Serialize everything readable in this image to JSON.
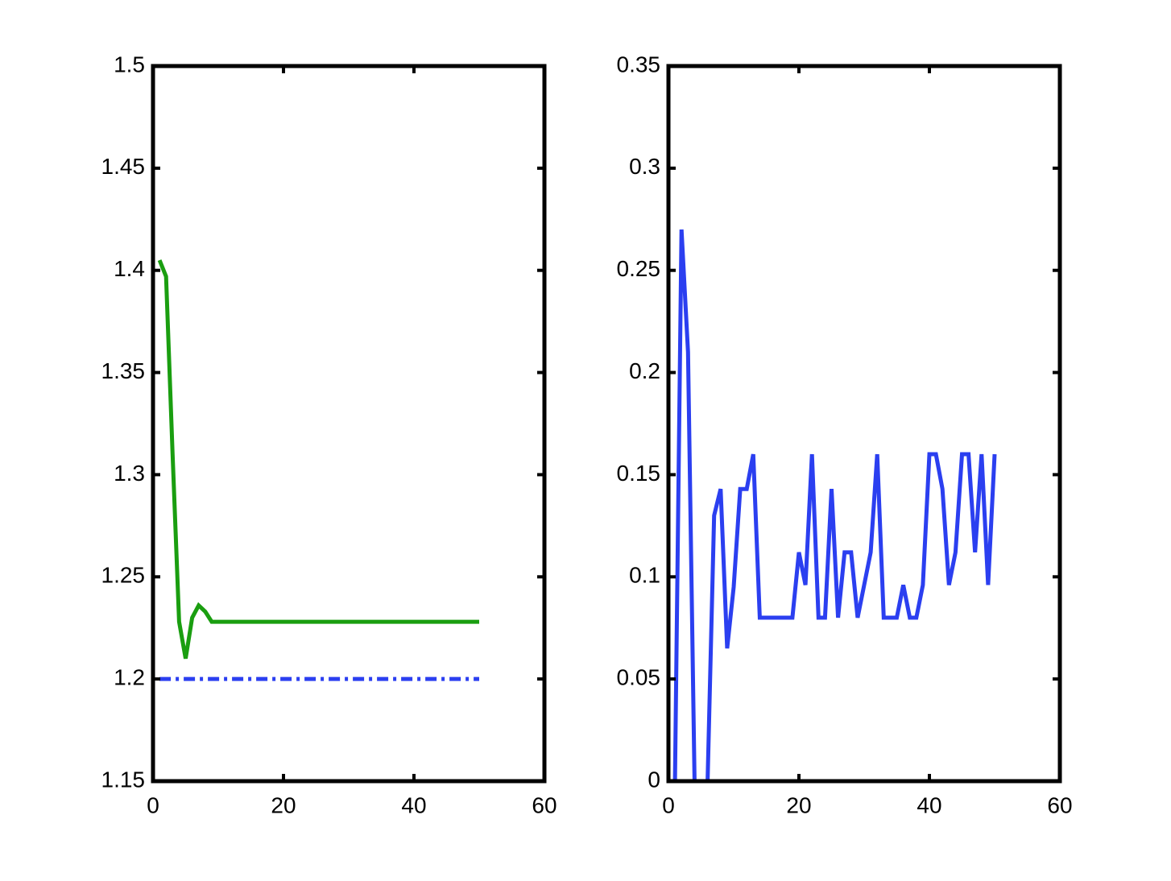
{
  "chart_data": [
    {
      "type": "line",
      "x": [
        1,
        2,
        3,
        4,
        5,
        6,
        7,
        8,
        9,
        10,
        11,
        12,
        13,
        14,
        15,
        16,
        17,
        18,
        19,
        20,
        21,
        22,
        23,
        24,
        25,
        26,
        27,
        28,
        29,
        30,
        31,
        32,
        33,
        34,
        35,
        36,
        37,
        38,
        39,
        40,
        41,
        42,
        43,
        44,
        45,
        46,
        47,
        48,
        49,
        50
      ],
      "series": [
        {
          "color": "#1a9e10",
          "linestyle": "solid",
          "values": [
            1.405,
            1.397,
            1.31,
            1.228,
            1.21,
            1.23,
            1.236,
            1.233,
            1.228,
            1.228,
            1.228,
            1.228,
            1.228,
            1.228,
            1.228,
            1.228,
            1.228,
            1.228,
            1.228,
            1.228,
            1.228,
            1.228,
            1.228,
            1.228,
            1.228,
            1.228,
            1.228,
            1.228,
            1.228,
            1.228,
            1.228,
            1.228,
            1.228,
            1.228,
            1.228,
            1.228,
            1.228,
            1.228,
            1.228,
            1.228,
            1.228,
            1.228,
            1.228,
            1.228,
            1.228,
            1.228,
            1.228,
            1.228,
            1.228,
            1.228
          ]
        },
        {
          "color": "#2b3ff0",
          "linestyle": "dashdot",
          "values": [
            1.2,
            1.2,
            1.2,
            1.2,
            1.2,
            1.2,
            1.2,
            1.2,
            1.2,
            1.2,
            1.2,
            1.2,
            1.2,
            1.2,
            1.2,
            1.2,
            1.2,
            1.2,
            1.2,
            1.2,
            1.2,
            1.2,
            1.2,
            1.2,
            1.2,
            1.2,
            1.2,
            1.2,
            1.2,
            1.2,
            1.2,
            1.2,
            1.2,
            1.2,
            1.2,
            1.2,
            1.2,
            1.2,
            1.2,
            1.2,
            1.2,
            1.2,
            1.2,
            1.2,
            1.2,
            1.2,
            1.2,
            1.2,
            1.2,
            1.2
          ]
        }
      ],
      "xlim": [
        0,
        60
      ],
      "xticks": [
        0,
        20,
        40,
        60
      ],
      "ylim": [
        1.15,
        1.5
      ],
      "yticks": [
        1.15,
        1.2,
        1.25,
        1.3,
        1.35,
        1.4,
        1.45,
        1.5
      ]
    },
    {
      "type": "line",
      "x": [
        1,
        2,
        3,
        4,
        5,
        6,
        7,
        8,
        9,
        10,
        11,
        12,
        13,
        14,
        15,
        16,
        17,
        18,
        19,
        20,
        21,
        22,
        23,
        24,
        25,
        26,
        27,
        28,
        29,
        30,
        31,
        32,
        33,
        34,
        35,
        36,
        37,
        38,
        39,
        40,
        41,
        42,
        43,
        44,
        45,
        46,
        47,
        48,
        49,
        50
      ],
      "series": [
        {
          "color": "#2b3ff0",
          "linestyle": "solid",
          "values": [
            0,
            0.27,
            0.21,
            0,
            0,
            0,
            0.13,
            0.143,
            0.065,
            0.095,
            0.143,
            0.143,
            0.16,
            0.08,
            0.08,
            0.08,
            0.08,
            0.08,
            0.08,
            0.112,
            0.096,
            0.16,
            0.08,
            0.08,
            0.143,
            0.08,
            0.112,
            0.112,
            0.08,
            0.096,
            0.112,
            0.16,
            0.08,
            0.08,
            0.08,
            0.096,
            0.08,
            0.08,
            0.096,
            0.16,
            0.16,
            0.143,
            0.096,
            0.112,
            0.16,
            0.16,
            0.112,
            0.16,
            0.096,
            0.16
          ]
        }
      ],
      "xlim": [
        0,
        60
      ],
      "xticks": [
        0,
        20,
        40,
        60
      ],
      "ylim": [
        0,
        0.35
      ],
      "yticks": [
        0,
        0.05,
        0.1,
        0.15,
        0.2,
        0.25,
        0.3,
        0.35
      ]
    }
  ]
}
